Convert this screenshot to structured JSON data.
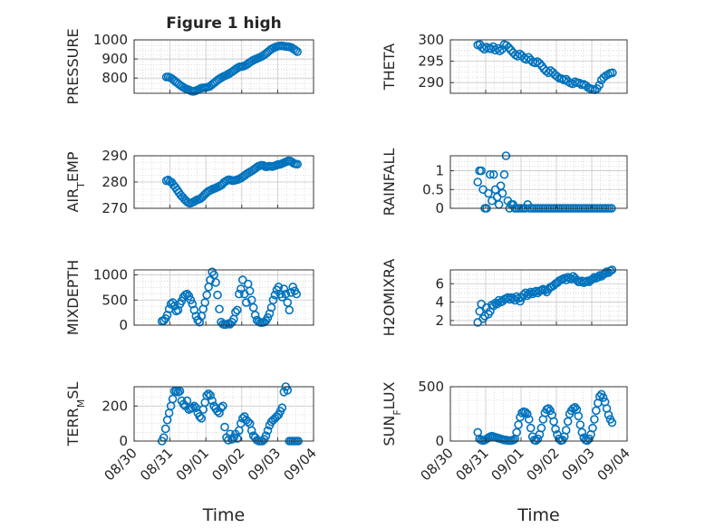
{
  "figure": {
    "title": "Figure 1 high",
    "marker_color": "#0072bd",
    "axis_color": "#262626",
    "grid_color": "#c8c8c8"
  },
  "chart_data": [
    {
      "type": "scatter",
      "ylabel": {
        "base": "PRESSURE",
        "sub": ""
      },
      "ylim": [
        720,
        1000
      ],
      "yticks": [
        800,
        900,
        1000
      ],
      "x": [
        0.72,
        0.76,
        0.8,
        0.84,
        0.88,
        0.92,
        0.96,
        1.0,
        1.04,
        1.08,
        1.12,
        1.16,
        1.2,
        1.24,
        1.28,
        1.32,
        1.36,
        1.4,
        1.44,
        1.48,
        1.52,
        1.56,
        1.6,
        1.64,
        1.68,
        1.72,
        1.76,
        1.8,
        1.84,
        1.88,
        1.92,
        1.96,
        2.0,
        2.04,
        2.08,
        2.12,
        2.16,
        2.2,
        2.24,
        2.28,
        2.32,
        2.36,
        2.4,
        2.44,
        2.48,
        2.52,
        2.56,
        2.6,
        2.64,
        2.68,
        2.72,
        2.76,
        2.8,
        2.84,
        2.88,
        2.92,
        2.96,
        3.0,
        3.04,
        3.08,
        3.12,
        3.16,
        3.2,
        3.24,
        3.28,
        3.32,
        3.36,
        3.4,
        3.44,
        3.48,
        3.52,
        3.56,
        3.6,
        3.64
      ],
      "y": [
        805,
        806,
        802,
        797,
        790,
        782,
        775,
        767,
        760,
        754,
        748,
        743,
        740,
        736,
        731,
        730,
        732,
        736,
        740,
        745,
        748,
        749,
        750,
        752,
        755,
        762,
        770,
        777,
        785,
        792,
        798,
        804,
        809,
        813,
        818,
        823,
        829,
        835,
        842,
        849,
        855,
        859,
        860,
        862,
        866,
        872,
        879,
        885,
        891,
        896,
        900,
        904,
        908,
        913,
        918,
        925,
        932,
        940,
        948,
        954,
        959,
        963,
        966,
        968,
        969,
        968,
        966,
        965,
        964,
        962,
        958,
        952,
        945,
        938
      ]
    },
    {
      "type": "scatter",
      "ylabel": {
        "base": "THETA",
        "sub": ""
      },
      "ylim": [
        287.5,
        300
      ],
      "yticks": [
        290,
        295,
        300
      ],
      "x": [
        0.62,
        0.67,
        0.72,
        0.77,
        0.82,
        0.87,
        0.92,
        0.97,
        1.02,
        1.07,
        1.12,
        1.17,
        1.22,
        1.27,
        1.32,
        1.37,
        1.42,
        1.47,
        1.52,
        1.57,
        1.62,
        1.67,
        1.72,
        1.77,
        1.82,
        1.87,
        1.92,
        1.97,
        2.02,
        2.07,
        2.12,
        2.17,
        2.22,
        2.27,
        2.32,
        2.37,
        2.42,
        2.47,
        2.52,
        2.57,
        2.62,
        2.67,
        2.72,
        2.77,
        2.82,
        2.87,
        2.92,
        2.97,
        3.02,
        3.07,
        3.12,
        3.17,
        3.22,
        3.27,
        3.32,
        3.37,
        3.42,
        3.47,
        3.52,
        3.57,
        3.62,
        3.67
      ],
      "y": [
        298.8,
        298.9,
        298.2,
        297.8,
        298.3,
        298.0,
        297.9,
        298.4,
        297.6,
        298.0,
        297.4,
        297.8,
        298.9,
        298.7,
        298.2,
        297.6,
        297.0,
        296.5,
        296.2,
        296.7,
        296.3,
        295.7,
        295.4,
        295.9,
        295.3,
        294.8,
        294.6,
        294.9,
        294.5,
        293.9,
        293.2,
        292.7,
        292.3,
        292.8,
        292.4,
        291.8,
        291.4,
        291.0,
        290.9,
        290.6,
        290.8,
        290.2,
        289.9,
        289.7,
        290.2,
        290.0,
        289.9,
        289.5,
        289.6,
        289.3,
        288.8,
        288.6,
        288.4,
        288.3,
        288.6,
        289.4,
        290.6,
        291.2,
        291.6,
        291.9,
        292.2,
        292.3
      ]
    },
    {
      "type": "scatter",
      "ylabel": {
        "base": "AIR",
        "sub": "T",
        "tail": "EMP"
      },
      "ylim": [
        270,
        290
      ],
      "yticks": [
        270,
        280,
        290
      ],
      "x": [
        0.72,
        0.76,
        0.8,
        0.84,
        0.88,
        0.92,
        0.96,
        1.0,
        1.04,
        1.08,
        1.12,
        1.16,
        1.2,
        1.24,
        1.28,
        1.32,
        1.36,
        1.4,
        1.44,
        1.48,
        1.52,
        1.56,
        1.6,
        1.64,
        1.68,
        1.72,
        1.76,
        1.8,
        1.84,
        1.88,
        1.92,
        1.96,
        2.0,
        2.04,
        2.08,
        2.12,
        2.16,
        2.2,
        2.24,
        2.28,
        2.32,
        2.36,
        2.4,
        2.44,
        2.48,
        2.52,
        2.56,
        2.6,
        2.64,
        2.68,
        2.72,
        2.76,
        2.8,
        2.84,
        2.88,
        2.92,
        2.96,
        3.0,
        3.04,
        3.08,
        3.12,
        3.16,
        3.2,
        3.24,
        3.28,
        3.32,
        3.36,
        3.4,
        3.44,
        3.48,
        3.52,
        3.56,
        3.6,
        3.64
      ],
      "y": [
        280.5,
        280.8,
        280.2,
        279.8,
        278.8,
        278.0,
        277.0,
        276.0,
        275.0,
        274.3,
        273.5,
        272.8,
        272.2,
        271.9,
        272.1,
        272.4,
        272.8,
        273.2,
        273.4,
        273.7,
        274.3,
        275.0,
        275.7,
        276.3,
        276.7,
        277.0,
        277.4,
        277.6,
        277.9,
        278.2,
        278.6,
        279.0,
        279.8,
        280.3,
        280.7,
        280.9,
        280.7,
        280.5,
        280.6,
        280.8,
        281.0,
        281.3,
        281.7,
        282.2,
        282.7,
        283.2,
        283.6,
        284.0,
        284.4,
        284.9,
        285.4,
        285.9,
        286.2,
        286.4,
        286.3,
        285.9,
        285.8,
        286.0,
        286.0,
        285.9,
        286.1,
        286.3,
        286.6,
        286.7,
        286.9,
        287.2,
        287.5,
        287.8,
        288.1,
        288.0,
        287.6,
        287.1,
        286.9,
        286.8
      ]
    },
    {
      "type": "scatter",
      "ylabel": {
        "base": "RAINFALL",
        "sub": ""
      },
      "ylim": [
        0,
        1.4
      ],
      "yticks": [
        0,
        0.5,
        1
      ],
      "x": [
        0.62,
        0.66,
        0.7,
        0.74,
        0.78,
        0.82,
        0.86,
        0.9,
        0.94,
        0.98,
        1.02,
        1.06,
        1.1,
        1.14,
        1.18,
        1.22,
        1.26,
        1.3,
        1.34,
        1.38,
        1.42,
        1.46,
        1.5,
        1.55,
        1.6,
        1.65,
        1.7,
        1.75,
        1.8,
        1.85,
        1.9,
        1.95,
        2.0,
        2.05,
        2.1,
        2.15,
        2.2,
        2.25,
        2.3,
        2.35,
        2.4,
        2.45,
        2.5,
        2.55,
        2.6,
        2.65,
        2.7,
        2.75,
        2.8,
        2.85,
        2.9,
        2.95,
        3.0,
        3.05,
        3.1,
        3.15,
        3.2,
        3.25,
        3.3,
        3.35,
        3.4,
        3.45,
        3.5,
        3.55,
        3.6,
        3.65
      ],
      "y": [
        0.7,
        1.0,
        1.0,
        0.5,
        0.0,
        0.0,
        0.4,
        0.9,
        0.2,
        0.9,
        0.5,
        0.3,
        0.1,
        0.6,
        0.4,
        0.9,
        1.4,
        0.2,
        0.0,
        0.1,
        0.1,
        0.0,
        0,
        0,
        0,
        0,
        0,
        0.1,
        0,
        0,
        0,
        0,
        0,
        0,
        0,
        0,
        0,
        0,
        0,
        0,
        0,
        0,
        0,
        0,
        0,
        0,
        0,
        0,
        0,
        0,
        0,
        0,
        0,
        0,
        0,
        0,
        0,
        0,
        0,
        0,
        0,
        0,
        0,
        0,
        0,
        0
      ]
    },
    {
      "type": "scatter",
      "ylabel": {
        "base": "MIXDEPTH",
        "sub": ""
      },
      "ylim": [
        0,
        1100
      ],
      "yticks": [
        0,
        500,
        1000
      ],
      "x": [
        0.62,
        0.66,
        0.7,
        0.74,
        0.78,
        0.82,
        0.86,
        0.9,
        0.94,
        0.98,
        1.02,
        1.06,
        1.1,
        1.14,
        1.18,
        1.22,
        1.26,
        1.3,
        1.34,
        1.38,
        1.42,
        1.46,
        1.5,
        1.54,
        1.58,
        1.62,
        1.66,
        1.7,
        1.74,
        1.78,
        1.82,
        1.86,
        1.9,
        1.94,
        1.98,
        2.02,
        2.06,
        2.1,
        2.14,
        2.18,
        2.22,
        2.26,
        2.3,
        2.34,
        2.38,
        2.42,
        2.46,
        2.5,
        2.54,
        2.58,
        2.62,
        2.66,
        2.7,
        2.74,
        2.78,
        2.82,
        2.86,
        2.9,
        2.94,
        2.98,
        3.02,
        3.06,
        3.1,
        3.14,
        3.18,
        3.22,
        3.26,
        3.3,
        3.34,
        3.38,
        3.42,
        3.46,
        3.5,
        3.54,
        3.58,
        3.62
      ],
      "y": [
        80,
        90,
        130,
        200,
        320,
        420,
        450,
        380,
        280,
        300,
        420,
        480,
        560,
        600,
        620,
        580,
        500,
        420,
        300,
        180,
        100,
        60,
        180,
        320,
        450,
        600,
        760,
        900,
        1060,
        1000,
        850,
        600,
        320,
        60,
        20,
        10,
        15,
        30,
        20,
        60,
        120,
        260,
        300,
        620,
        720,
        900,
        620,
        450,
        820,
        680,
        500,
        350,
        200,
        100,
        70,
        50,
        50,
        60,
        90,
        150,
        230,
        350,
        500,
        600,
        700,
        760,
        620,
        560,
        720,
        620,
        450,
        300,
        650,
        760,
        680,
        620
      ]
    },
    {
      "type": "scatter",
      "ylabel": {
        "base": "H2OMIXRA",
        "sub": ""
      },
      "ylim": [
        1.5,
        7.5
      ],
      "yticks": [
        2,
        4,
        6
      ],
      "x": [
        0.62,
        0.66,
        0.7,
        0.74,
        0.78,
        0.82,
        0.86,
        0.9,
        0.94,
        0.98,
        1.02,
        1.06,
        1.1,
        1.14,
        1.18,
        1.22,
        1.26,
        1.3,
        1.34,
        1.38,
        1.42,
        1.46,
        1.5,
        1.54,
        1.58,
        1.62,
        1.66,
        1.7,
        1.74,
        1.78,
        1.82,
        1.86,
        1.9,
        1.94,
        1.98,
        2.02,
        2.06,
        2.1,
        2.14,
        2.18,
        2.22,
        2.26,
        2.3,
        2.34,
        2.38,
        2.42,
        2.46,
        2.5,
        2.54,
        2.58,
        2.62,
        2.66,
        2.7,
        2.74,
        2.78,
        2.82,
        2.86,
        2.9,
        2.94,
        2.98,
        3.02,
        3.06,
        3.1,
        3.14,
        3.18,
        3.22,
        3.26,
        3.3,
        3.34,
        3.38,
        3.42,
        3.46,
        3.5,
        3.54,
        3.58,
        3.62,
        3.66
      ],
      "y": [
        1.8,
        3.0,
        3.8,
        2.2,
        2.5,
        3.4,
        2.7,
        3.0,
        3.7,
        3.6,
        3.9,
        3.8,
        4.2,
        4.0,
        4.1,
        4.3,
        4.4,
        4.5,
        4.3,
        4.5,
        4.4,
        4.2,
        4.6,
        4.4,
        4.1,
        4.5,
        4.8,
        5.0,
        4.7,
        4.9,
        5.1,
        4.9,
        5.1,
        5.2,
        5.0,
        5.2,
        5.3,
        5.4,
        5.3,
        5.1,
        5.4,
        5.6,
        5.7,
        5.8,
        6.0,
        6.1,
        6.3,
        6.4,
        6.5,
        6.6,
        6.4,
        6.7,
        6.6,
        6.5,
        6.8,
        6.6,
        6.4,
        6.2,
        6.2,
        6.3,
        6.1,
        6.2,
        6.3,
        6.2,
        6.4,
        6.5,
        6.7,
        6.6,
        6.7,
        6.9,
        6.8,
        7.0,
        7.1,
        7.3,
        7.2,
        7.4,
        7.5
      ]
    },
    {
      "type": "scatter",
      "ylabel": {
        "base": "TERR",
        "sub": "M",
        "tail": "SL"
      },
      "ylim": [
        0,
        310
      ],
      "yticks": [
        0,
        200
      ],
      "x": [
        0.62,
        0.66,
        0.7,
        0.74,
        0.78,
        0.82,
        0.86,
        0.9,
        0.94,
        0.98,
        1.02,
        1.06,
        1.1,
        1.14,
        1.18,
        1.22,
        1.26,
        1.3,
        1.34,
        1.38,
        1.42,
        1.46,
        1.5,
        1.54,
        1.58,
        1.62,
        1.66,
        1.7,
        1.74,
        1.78,
        1.82,
        1.86,
        1.9,
        1.94,
        1.98,
        2.02,
        2.06,
        2.1,
        2.14,
        2.18,
        2.22,
        2.26,
        2.3,
        2.34,
        2.38,
        2.42,
        2.46,
        2.5,
        2.54,
        2.58,
        2.62,
        2.66,
        2.7,
        2.74,
        2.78,
        2.82,
        2.86,
        2.9,
        2.94,
        2.98,
        3.02,
        3.06,
        3.1,
        3.14,
        3.18,
        3.22,
        3.26,
        3.3,
        3.34,
        3.38,
        3.42,
        3.46,
        3.5,
        3.54,
        3.58,
        3.62,
        3.66
      ],
      "y": [
        0,
        20,
        70,
        120,
        160,
        200,
        240,
        285,
        285,
        280,
        285,
        230,
        210,
        200,
        230,
        180,
        185,
        190,
        200,
        190,
        160,
        140,
        130,
        180,
        220,
        260,
        270,
        260,
        230,
        200,
        185,
        170,
        160,
        190,
        200,
        80,
        20,
        5,
        40,
        10,
        20,
        40,
        15,
        60,
        100,
        130,
        140,
        120,
        110,
        100,
        60,
        30,
        20,
        5,
        0,
        0,
        0,
        10,
        30,
        60,
        90,
        110,
        120,
        130,
        140,
        150,
        170,
        190,
        280,
        310,
        290,
        0,
        0,
        0,
        0,
        0,
        0
      ]
    },
    {
      "type": "scatter",
      "ylabel": {
        "base": "SUN",
        "sub": "F",
        "tail": "LUX"
      },
      "ylim": [
        0,
        500
      ],
      "yticks": [
        0,
        500
      ],
      "x": [
        0.62,
        0.66,
        0.7,
        0.74,
        0.78,
        0.82,
        0.86,
        0.9,
        0.94,
        0.98,
        1.02,
        1.06,
        1.1,
        1.14,
        1.18,
        1.22,
        1.26,
        1.3,
        1.34,
        1.38,
        1.42,
        1.46,
        1.5,
        1.54,
        1.58,
        1.62,
        1.66,
        1.7,
        1.74,
        1.78,
        1.82,
        1.86,
        1.9,
        1.94,
        1.98,
        2.02,
        2.06,
        2.1,
        2.14,
        2.18,
        2.22,
        2.26,
        2.3,
        2.34,
        2.38,
        2.42,
        2.46,
        2.5,
        2.54,
        2.58,
        2.62,
        2.66,
        2.7,
        2.74,
        2.78,
        2.82,
        2.86,
        2.9,
        2.94,
        2.98,
        3.02,
        3.06,
        3.1,
        3.14,
        3.18,
        3.22,
        3.26,
        3.3,
        3.34,
        3.38,
        3.42,
        3.46,
        3.5,
        3.54,
        3.58,
        3.62,
        3.66
      ],
      "y": [
        80,
        20,
        10,
        5,
        10,
        20,
        30,
        40,
        45,
        40,
        35,
        30,
        25,
        20,
        15,
        10,
        10,
        5,
        5,
        5,
        10,
        20,
        80,
        150,
        220,
        260,
        270,
        265,
        250,
        200,
        120,
        40,
        10,
        5,
        20,
        60,
        120,
        200,
        260,
        290,
        300,
        280,
        240,
        180,
        110,
        60,
        20,
        5,
        10,
        40,
        100,
        180,
        250,
        280,
        300,
        310,
        290,
        230,
        150,
        80,
        30,
        10,
        5,
        20,
        60,
        120,
        200,
        280,
        350,
        410,
        430,
        400,
        360,
        300,
        240,
        200,
        170
      ]
    }
  ],
  "xaxis": {
    "label": "Time",
    "range": [
      0,
      4
    ],
    "tick_labels": [
      "08/30",
      "08/31",
      "09/01",
      "09/02",
      "09/03",
      "09/04"
    ]
  }
}
